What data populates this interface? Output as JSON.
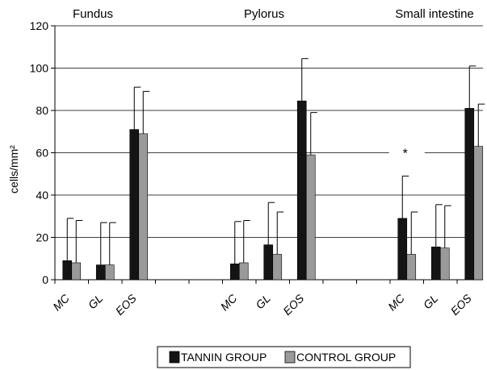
{
  "chart_data": {
    "type": "bar",
    "ylabel": "cells/mm²",
    "ylim": [
      0,
      120
    ],
    "yticks": [
      0,
      20,
      40,
      60,
      80,
      100,
      120
    ],
    "grid": true,
    "legend_placement": "bottom",
    "groups": [
      {
        "title": "Fundus",
        "categories": [
          "MC",
          "GL",
          "EOS"
        ],
        "series": [
          {
            "name": "TANNIN GROUP",
            "values": [
              9,
              7,
              71
            ],
            "errors": [
              20,
              20,
              20
            ]
          },
          {
            "name": "CONTROL GROUP",
            "values": [
              8,
              7,
              69
            ],
            "errors": [
              20,
              20,
              20
            ]
          }
        ]
      },
      {
        "title": "Pylorus",
        "categories": [
          "MC",
          "GL",
          "EOS"
        ],
        "series": [
          {
            "name": "TANNIN GROUP",
            "values": [
              7.5,
              16.5,
              84.5
            ],
            "errors": [
              20,
              20,
              20
            ]
          },
          {
            "name": "CONTROL GROUP",
            "values": [
              8,
              12,
              59
            ],
            "errors": [
              20,
              20,
              20
            ]
          }
        ]
      },
      {
        "title": "Small intestine",
        "categories": [
          "MC",
          "GL",
          "EOS"
        ],
        "series": [
          {
            "name": "TANNIN GROUP",
            "values": [
              29,
              15.5,
              81
            ],
            "errors": [
              20,
              20,
              20
            ]
          },
          {
            "name": "CONTROL GROUP",
            "values": [
              12,
              15,
              63
            ],
            "errors": [
              20,
              20,
              20
            ]
          }
        ]
      }
    ],
    "annotations": [
      {
        "text": "*",
        "group": 2,
        "category": 0,
        "y": 60
      }
    ],
    "colors": {
      "TANNIN GROUP": "#141414",
      "CONTROL GROUP": "#9a9a9a"
    }
  }
}
